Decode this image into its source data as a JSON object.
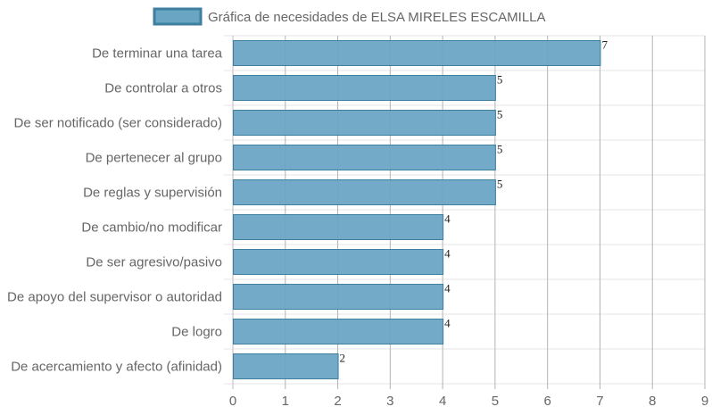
{
  "chart_data": {
    "type": "bar",
    "orientation": "horizontal",
    "title": "",
    "xlabel": "",
    "ylabel": "",
    "xlim": [
      0,
      9
    ],
    "x_ticks": [
      "0",
      "1",
      "2",
      "3",
      "4",
      "5",
      "6",
      "7",
      "8",
      "9"
    ],
    "grid": true,
    "legend_position": "top",
    "categories": [
      "De terminar una tarea",
      "De controlar a otros",
      "De ser notificado (ser considerado)",
      "De pertenecer al grupo",
      "De reglas y supervisión",
      "De cambio/no modificar",
      "De ser agresivo/pasivo",
      "De apoyo del supervisor o autoridad",
      "De logro",
      "De acercamiento y afecto (afinidad)"
    ],
    "series": [
      {
        "name": "Gráfica de necesidades de ELSA MIRELES ESCAMILLA",
        "values": [
          7,
          5,
          5,
          5,
          5,
          4,
          4,
          4,
          4,
          2
        ],
        "color": "#6aa5c4",
        "border_color": "#3d7ea1"
      }
    ],
    "data_labels": [
      "7",
      "5",
      "5",
      "5",
      "5",
      "4",
      "4",
      "4",
      "4",
      "2"
    ]
  }
}
